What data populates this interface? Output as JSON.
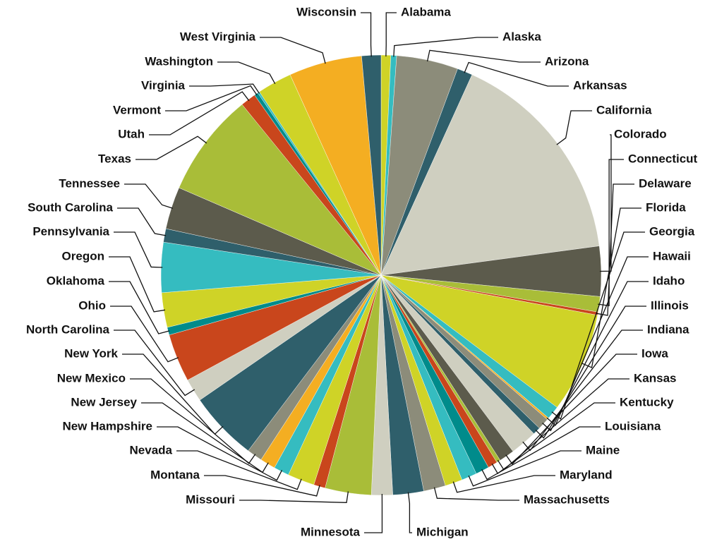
{
  "chart_data": {
    "type": "pie",
    "categories": [
      "Alabama",
      "Alaska",
      "Arizona",
      "Arkansas",
      "California",
      "Colorado",
      "Connecticut",
      "Delaware",
      "Florida",
      "Georgia",
      "Hawaii",
      "Idaho",
      "Illinois",
      "Indiana",
      "Iowa",
      "Kansas",
      "Kentucky",
      "Louisiana",
      "Maine",
      "Maryland",
      "Massachusetts",
      "Michigan",
      "Minnesota",
      "Missouri",
      "Montana",
      "Nevada",
      "New Hampshire",
      "New Jersey",
      "New Mexico",
      "New York",
      "North Carolina",
      "Ohio",
      "Oklahoma",
      "Oregon",
      "Pennsylvania",
      "South Carolina",
      "Tennessee",
      "Texas",
      "Utah",
      "Vermont",
      "Virginia",
      "Washington",
      "West Virginia",
      "Wisconsin"
    ],
    "values": [
      2.5,
      1.5,
      16,
      4,
      57,
      13,
      4,
      0.8,
      26,
      3.5,
      0.5,
      3,
      2,
      7,
      4,
      1,
      2.5,
      3.5,
      4,
      4.5,
      5.7,
      8,
      5.5,
      12,
      3,
      7,
      4,
      4,
      4,
      18,
      6,
      12.5,
      2,
      9,
      13,
      3.5,
      11,
      27,
      4,
      1,
      0.5,
      9,
      19,
      5
    ],
    "colors": [
      "#cfd327",
      "#35bcc0",
      "#8c8c7a",
      "#2f5f6b",
      "#cfcfc0",
      "#5c5b4c",
      "#a9bd38",
      "#c9461c",
      "#cfd327",
      "#35bcc0",
      "#f4ae22",
      "#8c8c7a",
      "#2f5f6b",
      "#cfcfc0",
      "#5c5b4c",
      "#a9bd38",
      "#c9461c",
      "#008b8b",
      "#35bcc0",
      "#cfd327",
      "#8c8c7a",
      "#2f5f6b",
      "#cfcfc0",
      "#a9bd38",
      "#c9461c",
      "#cfd327",
      "#35bcc0",
      "#f4ae22",
      "#8c8c7a",
      "#2f5f6b",
      "#cfcfc0",
      "#c9461c",
      "#008b8b",
      "#cfd327",
      "#35bcc0",
      "#2f5f6b",
      "#5c5b4c",
      "#a9bd38",
      "#c9461c",
      "#008b8b",
      "#35bcc0",
      "#cfd327",
      "#f4ae22",
      "#2f5f6b"
    ]
  }
}
